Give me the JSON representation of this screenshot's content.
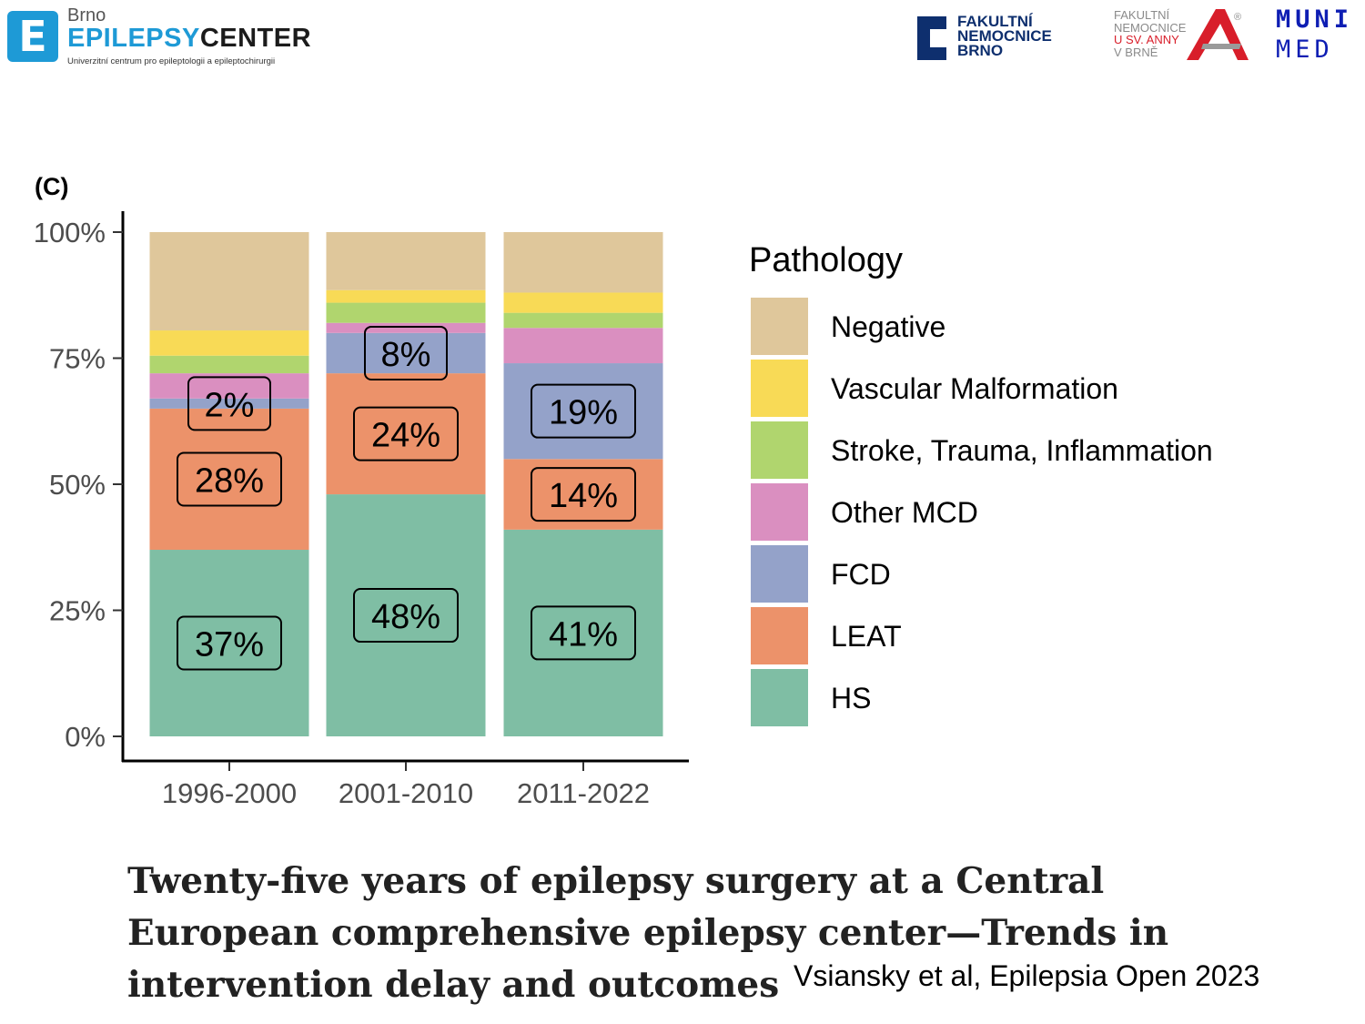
{
  "header": {
    "brno_logo": {
      "city": "Brno",
      "name_part1": "EPILEPSY",
      "name_part2": "CENTER",
      "subtitle": "Univerzitní centrum pro epileptologii a epileptochirurgii",
      "mark": "E"
    },
    "fn_logo": {
      "text": "FAKULTNÍ\nNEMOCNICE\nBRNO"
    },
    "anna_logo": {
      "line1": "FAKULTNÍ",
      "line2": "NEMOCNICE",
      "line3": "U SV. ANNY",
      "line4": "V BRNĚ",
      "registered": "®"
    },
    "muni_logo": {
      "top": "MUNI",
      "bottom": "MED"
    }
  },
  "chart_data": {
    "type": "bar",
    "stacked": true,
    "panel_label": "(C)",
    "categories": [
      "1996-2000",
      "2001-2010",
      "2011-2022"
    ],
    "y_ticks": [
      "0%",
      "25%",
      "50%",
      "75%",
      "100%"
    ],
    "ylim": [
      0,
      100
    ],
    "legend_title": "Pathology",
    "legend_position": "right",
    "grid": false,
    "series": [
      {
        "name": "HS",
        "color": "#7fbea4",
        "values": [
          37,
          48,
          41
        ],
        "labels": [
          "37%",
          "48%",
          "41%"
        ]
      },
      {
        "name": "LEAT",
        "color": "#ec926a",
        "values": [
          28,
          24,
          14
        ],
        "labels": [
          "28%",
          "24%",
          "14%"
        ]
      },
      {
        "name": "FCD",
        "color": "#94a2c9",
        "values": [
          2,
          8,
          19
        ],
        "labels": [
          "2%",
          "8%",
          "19%"
        ]
      },
      {
        "name": "Other MCD",
        "color": "#da8fc0",
        "values": [
          5,
          2,
          7
        ]
      },
      {
        "name": "Stroke, Trauma, Inflammation",
        "color": "#b0d56e",
        "values": [
          3.5,
          4,
          3
        ]
      },
      {
        "name": "Vascular Malformation",
        "color": "#f8da56",
        "values": [
          5,
          2.5,
          4
        ]
      },
      {
        "name": "Negative",
        "color": "#dfc79b",
        "values": [
          19.5,
          11.5,
          12
        ]
      }
    ]
  },
  "citation": {
    "title": "Twenty-five years of epilepsy surgery at a Central European comprehensive epilepsy center—Trends in intervention delay and outcomes",
    "reference": "Vsiansky et al, Epilepsia Open 2023"
  }
}
